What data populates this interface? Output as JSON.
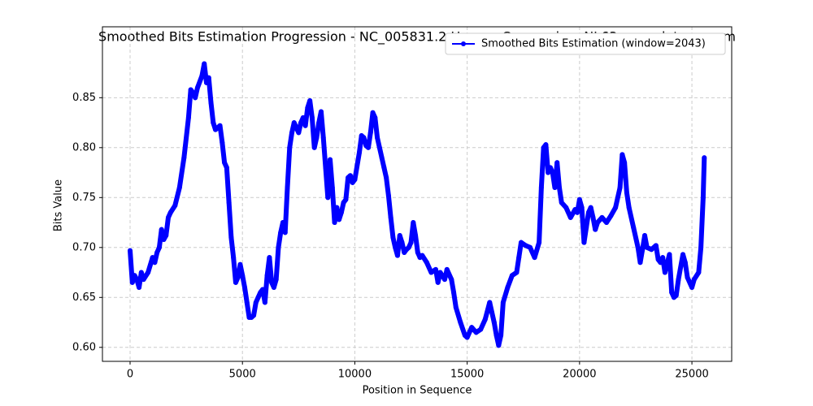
{
  "chart_data": {
    "type": "line",
    "title": "Smoothed Bits Estimation Progression - NC_005831.2 Human Coronavirus NL63, complete genom",
    "xlabel": "Position in Sequence",
    "ylabel": "Bits Value",
    "x": [
      0,
      100,
      200,
      300,
      400,
      500,
      600,
      800,
      1000,
      1100,
      1200,
      1300,
      1400,
      1500,
      1600,
      1700,
      1800,
      2000,
      2200,
      2400,
      2600,
      2700,
      2800,
      2900,
      3000,
      3200,
      3300,
      3400,
      3500,
      3600,
      3700,
      3800,
      3900,
      4000,
      4100,
      4200,
      4300,
      4400,
      4500,
      4600,
      4700,
      4800,
      4900,
      5000,
      5100,
      5200,
      5300,
      5400,
      5500,
      5600,
      5700,
      5800,
      5900,
      6000,
      6100,
      6200,
      6300,
      6400,
      6500,
      6600,
      6700,
      6800,
      6900,
      7000,
      7100,
      7200,
      7300,
      7400,
      7500,
      7600,
      7700,
      7800,
      7900,
      8000,
      8100,
      8200,
      8300,
      8400,
      8500,
      8600,
      8700,
      8800,
      8900,
      9000,
      9100,
      9200,
      9300,
      9400,
      9500,
      9600,
      9700,
      9800,
      9900,
      10000,
      10200,
      10300,
      10400,
      10500,
      10600,
      10700,
      10800,
      10900,
      11000,
      11100,
      11200,
      11300,
      11400,
      11500,
      11600,
      11700,
      11800,
      11900,
      12000,
      12100,
      12200,
      12300,
      12400,
      12500,
      12600,
      12700,
      12800,
      12900,
      13000,
      13200,
      13400,
      13600,
      13700,
      13800,
      14000,
      14100,
      14300,
      14400,
      14500,
      14700,
      14900,
      15000,
      15200,
      15400,
      15600,
      15800,
      16000,
      16100,
      16200,
      16300,
      16400,
      16500,
      16600,
      16800,
      17000,
      17200,
      17300,
      17400,
      17600,
      17800,
      18000,
      18200,
      18300,
      18400,
      18500,
      18600,
      18700,
      18800,
      18900,
      19000,
      19100,
      19200,
      19400,
      19600,
      19800,
      19900,
      20000,
      20100,
      20200,
      20300,
      20400,
      20500,
      20600,
      20700,
      20800,
      21000,
      21200,
      21400,
      21600,
      21800,
      21900,
      22000,
      22100,
      22200,
      22400,
      22600,
      22700,
      22800,
      22900,
      23000,
      23200,
      23400,
      23500,
      23600,
      23700,
      23800,
      24000,
      24100,
      24200,
      24300,
      24400,
      24600,
      24700,
      24800,
      25000,
      25100,
      25300,
      25400,
      25500,
      25550
    ],
    "series": [
      {
        "name": "Smoothed Bits Estimation (window=2043)",
        "color": "#0000ff",
        "values": [
          0.697,
          0.665,
          0.672,
          0.668,
          0.66,
          0.675,
          0.668,
          0.675,
          0.69,
          0.685,
          0.695,
          0.7,
          0.718,
          0.708,
          0.712,
          0.73,
          0.735,
          0.742,
          0.76,
          0.79,
          0.83,
          0.858,
          0.855,
          0.85,
          0.86,
          0.872,
          0.884,
          0.865,
          0.87,
          0.845,
          0.825,
          0.818,
          0.82,
          0.822,
          0.805,
          0.785,
          0.78,
          0.745,
          0.71,
          0.69,
          0.665,
          0.67,
          0.683,
          0.672,
          0.66,
          0.645,
          0.63,
          0.63,
          0.632,
          0.645,
          0.65,
          0.655,
          0.658,
          0.645,
          0.672,
          0.69,
          0.665,
          0.66,
          0.668,
          0.7,
          0.715,
          0.725,
          0.715,
          0.76,
          0.8,
          0.815,
          0.825,
          0.82,
          0.815,
          0.825,
          0.83,
          0.822,
          0.84,
          0.847,
          0.83,
          0.8,
          0.81,
          0.825,
          0.836,
          0.81,
          0.78,
          0.75,
          0.788,
          0.76,
          0.725,
          0.74,
          0.728,
          0.735,
          0.745,
          0.748,
          0.77,
          0.772,
          0.765,
          0.768,
          0.795,
          0.812,
          0.81,
          0.802,
          0.8,
          0.815,
          0.835,
          0.83,
          0.81,
          0.8,
          0.79,
          0.78,
          0.77,
          0.752,
          0.73,
          0.71,
          0.7,
          0.692,
          0.712,
          0.705,
          0.695,
          0.698,
          0.7,
          0.705,
          0.725,
          0.712,
          0.695,
          0.69,
          0.692,
          0.685,
          0.675,
          0.678,
          0.665,
          0.675,
          0.668,
          0.678,
          0.668,
          0.655,
          0.64,
          0.625,
          0.612,
          0.61,
          0.62,
          0.615,
          0.618,
          0.628,
          0.645,
          0.635,
          0.625,
          0.612,
          0.602,
          0.612,
          0.645,
          0.66,
          0.672,
          0.675,
          0.69,
          0.705,
          0.702,
          0.7,
          0.69,
          0.705,
          0.76,
          0.8,
          0.803,
          0.775,
          0.78,
          0.775,
          0.76,
          0.785,
          0.76,
          0.745,
          0.74,
          0.73,
          0.738,
          0.735,
          0.748,
          0.74,
          0.705,
          0.72,
          0.735,
          0.74,
          0.73,
          0.718,
          0.725,
          0.73,
          0.725,
          0.732,
          0.74,
          0.76,
          0.793,
          0.785,
          0.755,
          0.74,
          0.72,
          0.7,
          0.685,
          0.698,
          0.712,
          0.7,
          0.698,
          0.702,
          0.688,
          0.685,
          0.69,
          0.675,
          0.693,
          0.655,
          0.65,
          0.652,
          0.668,
          0.693,
          0.685,
          0.67,
          0.66,
          0.668,
          0.675,
          0.7,
          0.75,
          0.79
        ]
      }
    ],
    "xlim": [
      -1230,
      26770
    ],
    "ylim": [
      0.586,
      0.921
    ],
    "xticks": [
      0,
      5000,
      10000,
      15000,
      20000,
      25000
    ],
    "yticks": [
      {
        "value": 0.6,
        "label": "0.60"
      },
      {
        "value": 0.65,
        "label": "0.65"
      },
      {
        "value": 0.7,
        "label": "0.70"
      },
      {
        "value": 0.75,
        "label": "0.75"
      },
      {
        "value": 0.8,
        "label": "0.80"
      },
      {
        "value": 0.85,
        "label": "0.85"
      }
    ],
    "grid": true,
    "legend": "upper right"
  }
}
